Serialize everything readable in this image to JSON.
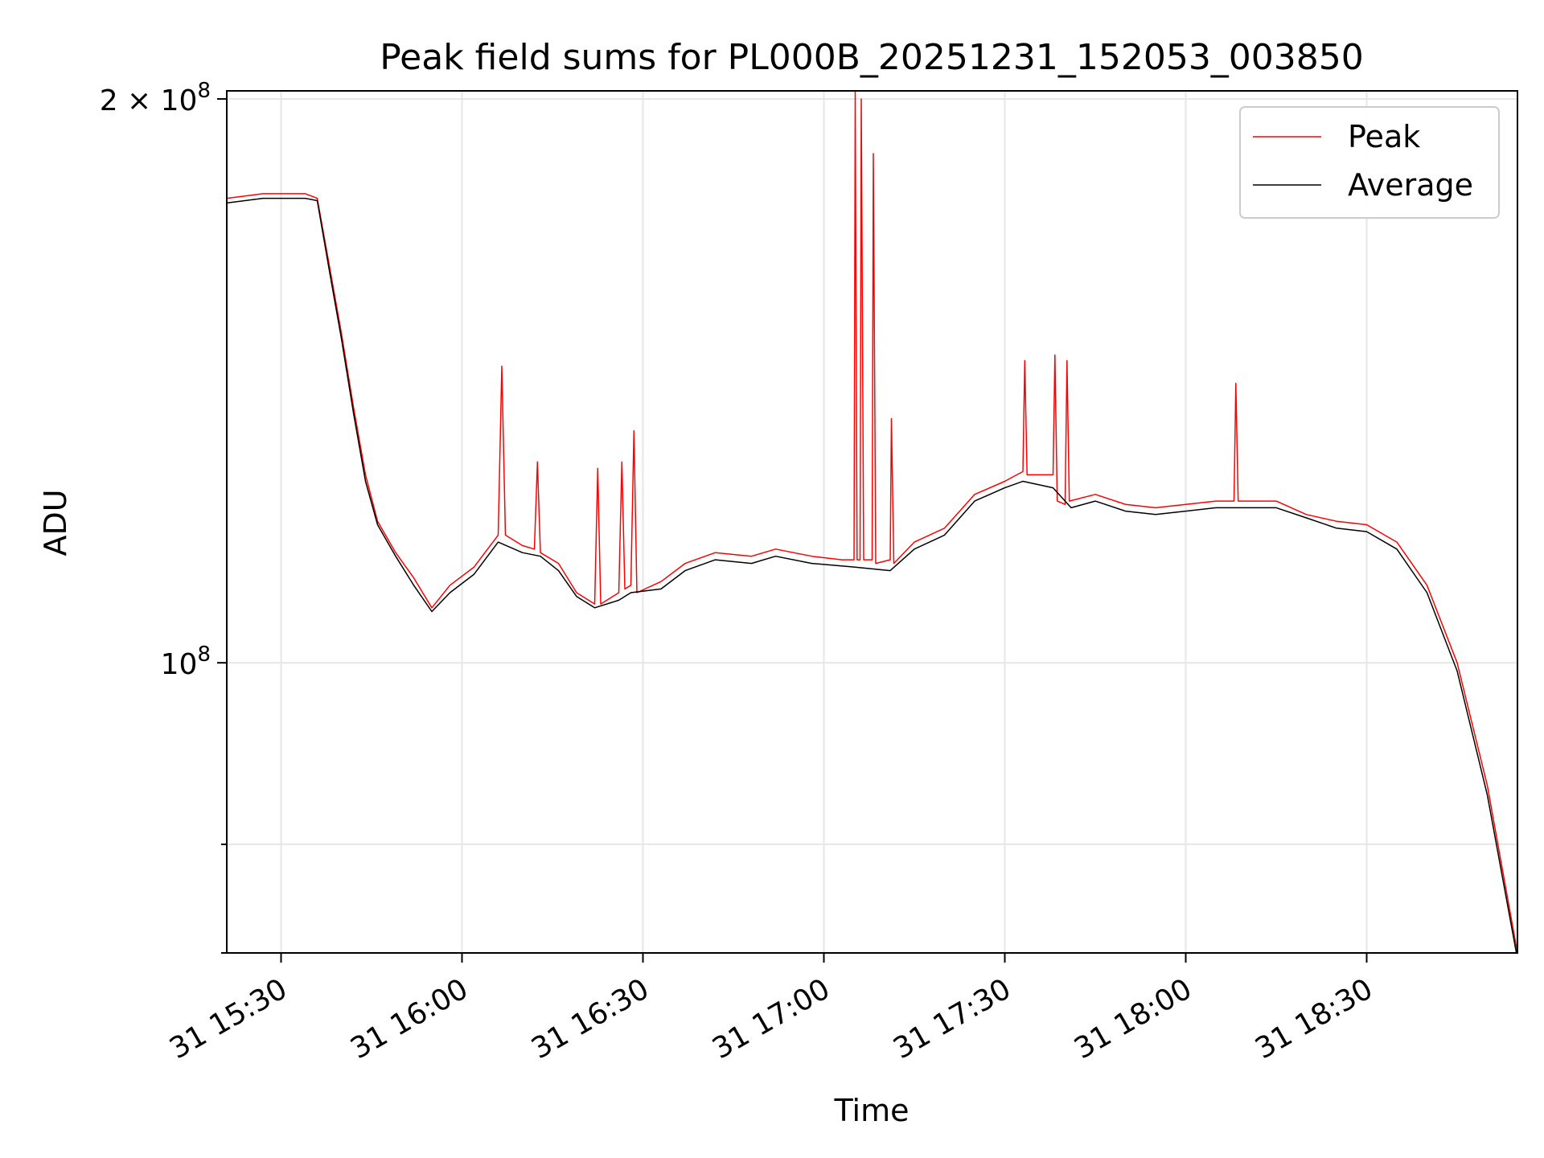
{
  "chart_data": {
    "type": "line",
    "title": "Peak field sums for PL000B_20251231_152053_003850",
    "xlabel": "Time",
    "ylabel": "ADU",
    "yscale": "log",
    "grid": true,
    "legend_position": "top-right",
    "xlim": [
      "2025-12-31 15:21",
      "2025-12-31 18:55"
    ],
    "ylim": [
      70000000,
      202000000
    ],
    "x_ticks": [
      "31 15:30",
      "31 16:00",
      "31 16:30",
      "31 17:00",
      "31 17:30",
      "31 18:00",
      "31 18:30"
    ],
    "y_ticks": [
      {
        "value": 100000000,
        "base": "10",
        "exp": "8",
        "coef": ""
      },
      {
        "value": 200000000,
        "base": "10",
        "exp": "8",
        "coef": "2 × "
      }
    ],
    "y_minor_ticks": [
      70000000,
      80000000
    ],
    "series": [
      {
        "name": "Peak",
        "color": "#ff0000",
        "points": [
          [
            "2025-12-31 15:21",
            177000000
          ],
          [
            "2025-12-31 15:27",
            178000000
          ],
          [
            "2025-12-31 15:34",
            178000000
          ],
          [
            "2025-12-31 15:36",
            177000000
          ],
          [
            "2025-12-31 15:38",
            163000000
          ],
          [
            "2025-12-31 15:40",
            150000000
          ],
          [
            "2025-12-31 15:42",
            137000000
          ],
          [
            "2025-12-31 15:44",
            126000000
          ],
          [
            "2025-12-31 15:46",
            119000000
          ],
          [
            "2025-12-31 15:49",
            114500000
          ],
          [
            "2025-12-31 15:52",
            111000000
          ],
          [
            "2025-12-31 15:55",
            107000000
          ],
          [
            "2025-12-31 15:58",
            110000000
          ],
          [
            "2025-12-31 16:02",
            112500000
          ],
          [
            "2025-12-31 16:06",
            117000000
          ],
          [
            "2025-12-31 16:06.6",
            144000000
          ],
          [
            "2025-12-31 16:07.2",
            117000000
          ],
          [
            "2025-12-31 16:10",
            115500000
          ],
          [
            "2025-12-31 16:12",
            115000000
          ],
          [
            "2025-12-31 16:12.5",
            128000000
          ],
          [
            "2025-12-31 16:13",
            114500000
          ],
          [
            "2025-12-31 16:16",
            113000000
          ],
          [
            "2025-12-31 16:19",
            109000000
          ],
          [
            "2025-12-31 16:22",
            107500000
          ],
          [
            "2025-12-31 16:22.5",
            127000000
          ],
          [
            "2025-12-31 16:23",
            107500000
          ],
          [
            "2025-12-31 16:26",
            109000000
          ],
          [
            "2025-12-31 16:26.5",
            128000000
          ],
          [
            "2025-12-31 16:27",
            109500000
          ],
          [
            "2025-12-31 16:28",
            110000000
          ],
          [
            "2025-12-31 16:28.5",
            133000000
          ],
          [
            "2025-12-31 16:29",
            109000000
          ],
          [
            "2025-12-31 16:33",
            110500000
          ],
          [
            "2025-12-31 16:37",
            113000000
          ],
          [
            "2025-12-31 16:42",
            114500000
          ],
          [
            "2025-12-31 16:48",
            114000000
          ],
          [
            "2025-12-31 16:52",
            115000000
          ],
          [
            "2025-12-31 16:58",
            114000000
          ],
          [
            "2025-12-31 17:03",
            113500000
          ],
          [
            "2025-12-31 17:05",
            113500000
          ],
          [
            "2025-12-31 17:05.2",
            202000000
          ],
          [
            "2025-12-31 17:05.5",
            113500000
          ],
          [
            "2025-12-31 17:06",
            113500000
          ],
          [
            "2025-12-31 17:06.2",
            200000000
          ],
          [
            "2025-12-31 17:06.6",
            113500000
          ],
          [
            "2025-12-31 17:08",
            113500000
          ],
          [
            "2025-12-31 17:08.2",
            187000000
          ],
          [
            "2025-12-31 17:08.6",
            113000000
          ],
          [
            "2025-12-31 17:11",
            113500000
          ],
          [
            "2025-12-31 17:11.2",
            135000000
          ],
          [
            "2025-12-31 17:11.6",
            113000000
          ],
          [
            "2025-12-31 17:15",
            116000000
          ],
          [
            "2025-12-31 17:20",
            118000000
          ],
          [
            "2025-12-31 17:25",
            123000000
          ],
          [
            "2025-12-31 17:30",
            125000000
          ],
          [
            "2025-12-31 17:32",
            126000000
          ],
          [
            "2025-12-31 17:33",
            126500000
          ],
          [
            "2025-12-31 17:33.3",
            145000000
          ],
          [
            "2025-12-31 17:33.7",
            126000000
          ],
          [
            "2025-12-31 17:38",
            126000000
          ],
          [
            "2025-12-31 17:38.3",
            146000000
          ],
          [
            "2025-12-31 17:38.7",
            122000000
          ],
          [
            "2025-12-31 17:40",
            121500000
          ],
          [
            "2025-12-31 17:40.3",
            145000000
          ],
          [
            "2025-12-31 17:40.7",
            122000000
          ],
          [
            "2025-12-31 17:45",
            123000000
          ],
          [
            "2025-12-31 17:50",
            121500000
          ],
          [
            "2025-12-31 17:55",
            121000000
          ],
          [
            "2025-12-31 18:00",
            121500000
          ],
          [
            "2025-12-31 18:05",
            122000000
          ],
          [
            "2025-12-31 18:08",
            122000000
          ],
          [
            "2025-12-31 18:08.3",
            141000000
          ],
          [
            "2025-12-31 18:08.7",
            122000000
          ],
          [
            "2025-12-31 18:15",
            122000000
          ],
          [
            "2025-12-31 18:20",
            120000000
          ],
          [
            "2025-12-31 18:25",
            119000000
          ],
          [
            "2025-12-31 18:30",
            118500000
          ],
          [
            "2025-12-31 18:35",
            116000000
          ],
          [
            "2025-12-31 18:40",
            110000000
          ],
          [
            "2025-12-31 18:45",
            100000000
          ],
          [
            "2025-12-31 18:50",
            86000000
          ],
          [
            "2025-12-31 18:55",
            70000000
          ]
        ]
      },
      {
        "name": "Average",
        "color": "#000000",
        "points": [
          [
            "2025-12-31 15:21",
            176000000
          ],
          [
            "2025-12-31 15:27",
            177000000
          ],
          [
            "2025-12-31 15:34",
            177000000
          ],
          [
            "2025-12-31 15:36",
            176500000
          ],
          [
            "2025-12-31 15:38",
            162000000
          ],
          [
            "2025-12-31 15:40",
            149000000
          ],
          [
            "2025-12-31 15:42",
            136000000
          ],
          [
            "2025-12-31 15:44",
            125000000
          ],
          [
            "2025-12-31 15:46",
            118500000
          ],
          [
            "2025-12-31 15:49",
            114000000
          ],
          [
            "2025-12-31 15:52",
            110000000
          ],
          [
            "2025-12-31 15:55",
            106500000
          ],
          [
            "2025-12-31 15:58",
            109000000
          ],
          [
            "2025-12-31 16:02",
            111500000
          ],
          [
            "2025-12-31 16:06",
            116000000
          ],
          [
            "2025-12-31 16:10",
            114500000
          ],
          [
            "2025-12-31 16:13",
            114000000
          ],
          [
            "2025-12-31 16:16",
            112000000
          ],
          [
            "2025-12-31 16:19",
            108500000
          ],
          [
            "2025-12-31 16:22",
            107000000
          ],
          [
            "2025-12-31 16:26",
            108000000
          ],
          [
            "2025-12-31 16:28",
            109000000
          ],
          [
            "2025-12-31 16:33",
            109500000
          ],
          [
            "2025-12-31 16:37",
            112000000
          ],
          [
            "2025-12-31 16:42",
            113500000
          ],
          [
            "2025-12-31 16:48",
            113000000
          ],
          [
            "2025-12-31 16:52",
            114000000
          ],
          [
            "2025-12-31 16:58",
            113000000
          ],
          [
            "2025-12-31 17:05",
            112500000
          ],
          [
            "2025-12-31 17:11",
            112000000
          ],
          [
            "2025-12-31 17:15",
            115000000
          ],
          [
            "2025-12-31 17:20",
            117000000
          ],
          [
            "2025-12-31 17:25",
            122000000
          ],
          [
            "2025-12-31 17:30",
            124000000
          ],
          [
            "2025-12-31 17:33",
            125000000
          ],
          [
            "2025-12-31 17:38",
            124000000
          ],
          [
            "2025-12-31 17:41",
            121000000
          ],
          [
            "2025-12-31 17:45",
            122000000
          ],
          [
            "2025-12-31 17:50",
            120500000
          ],
          [
            "2025-12-31 17:55",
            120000000
          ],
          [
            "2025-12-31 18:00",
            120500000
          ],
          [
            "2025-12-31 18:05",
            121000000
          ],
          [
            "2025-12-31 18:15",
            121000000
          ],
          [
            "2025-12-31 18:20",
            119500000
          ],
          [
            "2025-12-31 18:25",
            118000000
          ],
          [
            "2025-12-31 18:30",
            117500000
          ],
          [
            "2025-12-31 18:35",
            115000000
          ],
          [
            "2025-12-31 18:40",
            109000000
          ],
          [
            "2025-12-31 18:45",
            99000000
          ],
          [
            "2025-12-31 18:50",
            85000000
          ],
          [
            "2025-12-31 18:55",
            69500000
          ]
        ]
      }
    ]
  }
}
